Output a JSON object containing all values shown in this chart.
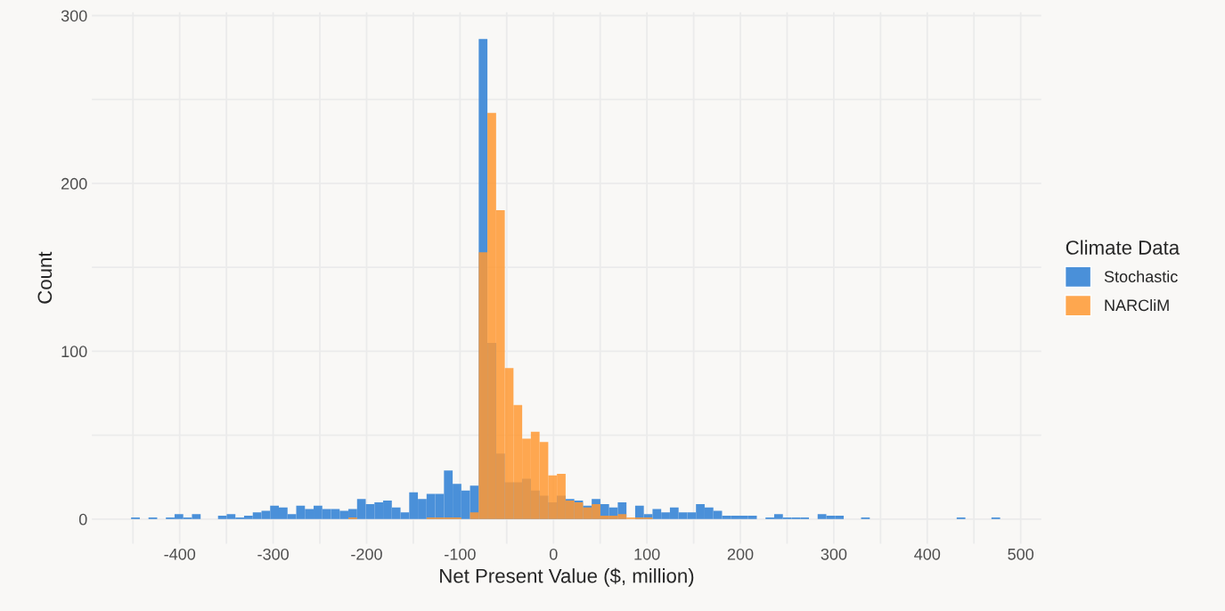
{
  "chart_data": {
    "type": "histogram",
    "xlabel": "Net Present Value ($, million)",
    "ylabel": "Count",
    "legend_title": "Climate Data",
    "bins": [
      -452,
      -442.7,
      -433.4,
      -424.1,
      -414.8,
      -405.5,
      -396.2,
      -386.9,
      -377.6,
      -368.3,
      -359,
      -349.7,
      -340.4,
      -331.1,
      -321.8,
      -312.5,
      -303.2,
      -293.9,
      -284.6,
      -275.3,
      -266,
      -256.7,
      -247.4,
      -238.1,
      -228.8,
      -219.5,
      -210.2,
      -200.9,
      -191.6,
      -182.3,
      -173,
      -163.7,
      -154.4,
      -145.1,
      -135.8,
      -126.5,
      -117.2,
      -107.9,
      -98.6,
      -89.3,
      -80,
      -70.7,
      -61.4,
      -52.1,
      -42.8,
      -33.5,
      -24.2,
      -14.9,
      -5.6,
      3.7,
      13,
      22.3,
      31.6,
      40.9,
      50.2,
      59.5,
      68.8,
      78.1,
      87.4,
      96.7,
      106,
      115.3,
      124.6,
      133.9,
      143.2,
      152.5,
      161.8,
      171.1,
      180.4,
      189.7,
      199,
      208.3,
      217.6,
      226.9,
      236.2,
      245.5,
      254.8,
      264.1,
      273.4,
      282.7,
      292,
      301.3,
      310.6,
      319.9,
      329.2,
      338.5,
      347.8,
      357.1,
      366.4,
      375.7,
      385,
      394.3,
      403.6,
      412.9,
      422.2,
      431.5,
      440.8,
      450.1,
      459.4,
      468.7,
      478
    ],
    "series": [
      {
        "name": "Stochastic",
        "color": "#4a90d9",
        "values": [
          1,
          0,
          1,
          0,
          1,
          3,
          1,
          3,
          0,
          0,
          2,
          3,
          1,
          2,
          4,
          5,
          8,
          7,
          3,
          8,
          6,
          8,
          6,
          6,
          5,
          6,
          12,
          9,
          10,
          11,
          7,
          4,
          16,
          12,
          15,
          15,
          29,
          21,
          17,
          20,
          286,
          105,
          39,
          22,
          22,
          24,
          17,
          14,
          10,
          14,
          12,
          11,
          8,
          12,
          9,
          7,
          10,
          0,
          8,
          3,
          6,
          4,
          7,
          4,
          4,
          9,
          7,
          5,
          2,
          2,
          2,
          2,
          0,
          1,
          3,
          1,
          1,
          1,
          0,
          3,
          2,
          2,
          0,
          0,
          1,
          0,
          0,
          0,
          0,
          0,
          0,
          0,
          0,
          0,
          0,
          1,
          0,
          0,
          0,
          1
        ]
      },
      {
        "name": "NARCliM",
        "color": "#ff9933",
        "values": [
          0,
          0,
          0,
          0,
          0,
          0,
          0,
          0,
          0,
          0,
          0,
          0,
          0,
          0,
          0,
          0,
          0,
          0,
          0,
          0,
          0,
          0,
          0,
          0,
          0,
          1,
          0,
          0,
          0,
          0,
          0,
          0,
          0,
          0,
          1,
          1,
          1,
          1,
          0,
          4,
          159,
          242,
          184,
          90,
          68,
          48,
          52,
          46,
          26,
          27,
          11,
          10,
          7,
          9,
          2,
          2,
          3,
          1,
          1,
          1,
          0,
          0,
          0,
          0,
          0,
          0,
          0,
          0,
          0,
          0,
          0,
          0,
          0,
          0,
          0,
          0,
          0,
          0,
          0,
          0,
          0,
          0,
          0,
          0,
          0,
          0,
          0,
          0,
          0,
          0,
          0,
          0,
          0,
          0,
          0,
          0,
          0,
          0,
          0,
          0
        ]
      }
    ],
    "xlim": [
      -494,
      522
    ],
    "xticks": [
      -400,
      -300,
      -200,
      -100,
      0,
      100,
      200,
      300,
      400,
      500
    ],
    "ylim": [
      -14.7,
      302
    ],
    "yticks": [
      0,
      100,
      200,
      300
    ],
    "grid": true,
    "legend": "right"
  }
}
